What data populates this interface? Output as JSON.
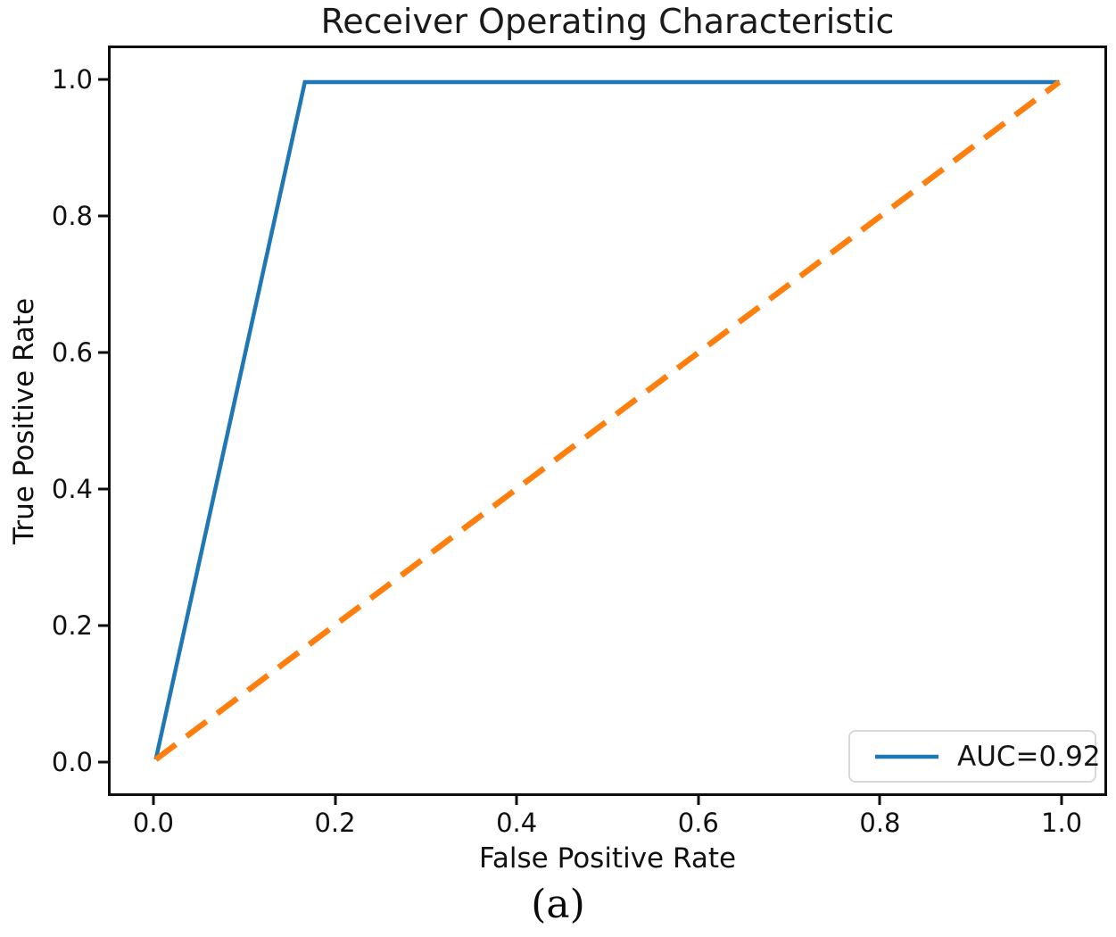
{
  "figure": {
    "caption": "(a)"
  },
  "chart_data": {
    "type": "line",
    "title": "Receiver Operating Characteristic",
    "xlabel": "False Positive Rate",
    "ylabel": "True Positive Rate",
    "xlim": [
      -0.05,
      1.05
    ],
    "ylim": [
      -0.05,
      1.05
    ],
    "x_tick_values": [
      0.0,
      0.2,
      0.4,
      0.6,
      0.8,
      1.0
    ],
    "x_tick_labels": [
      "0.0",
      "0.2",
      "0.4",
      "0.6",
      "0.8",
      "1.0"
    ],
    "y_tick_values": [
      0.0,
      0.2,
      0.4,
      0.6,
      0.8,
      1.0
    ],
    "y_tick_labels": [
      "0.0",
      "0.2",
      "0.4",
      "0.6",
      "0.8",
      "1.0"
    ],
    "grid": false,
    "legend_position": "lower right",
    "auc": 0.92,
    "series": [
      {
        "name": "roc-curve",
        "label": "AUC=0.92",
        "color": "#1f77b4",
        "style": "solid",
        "stroke_width": 4.5,
        "points": [
          [
            0.0,
            0.0
          ],
          [
            0.165,
            1.0
          ],
          [
            1.0,
            1.0
          ]
        ]
      },
      {
        "name": "chance-diagonal",
        "label": "",
        "color": "#ff7f0e",
        "style": "dashed",
        "stroke_width": 6.5,
        "points": [
          [
            0.0,
            0.0
          ],
          [
            1.0,
            1.0
          ]
        ]
      }
    ],
    "colors": {
      "axis": "#0e0e0e",
      "text": "#111111",
      "background": "#ffffff"
    }
  }
}
